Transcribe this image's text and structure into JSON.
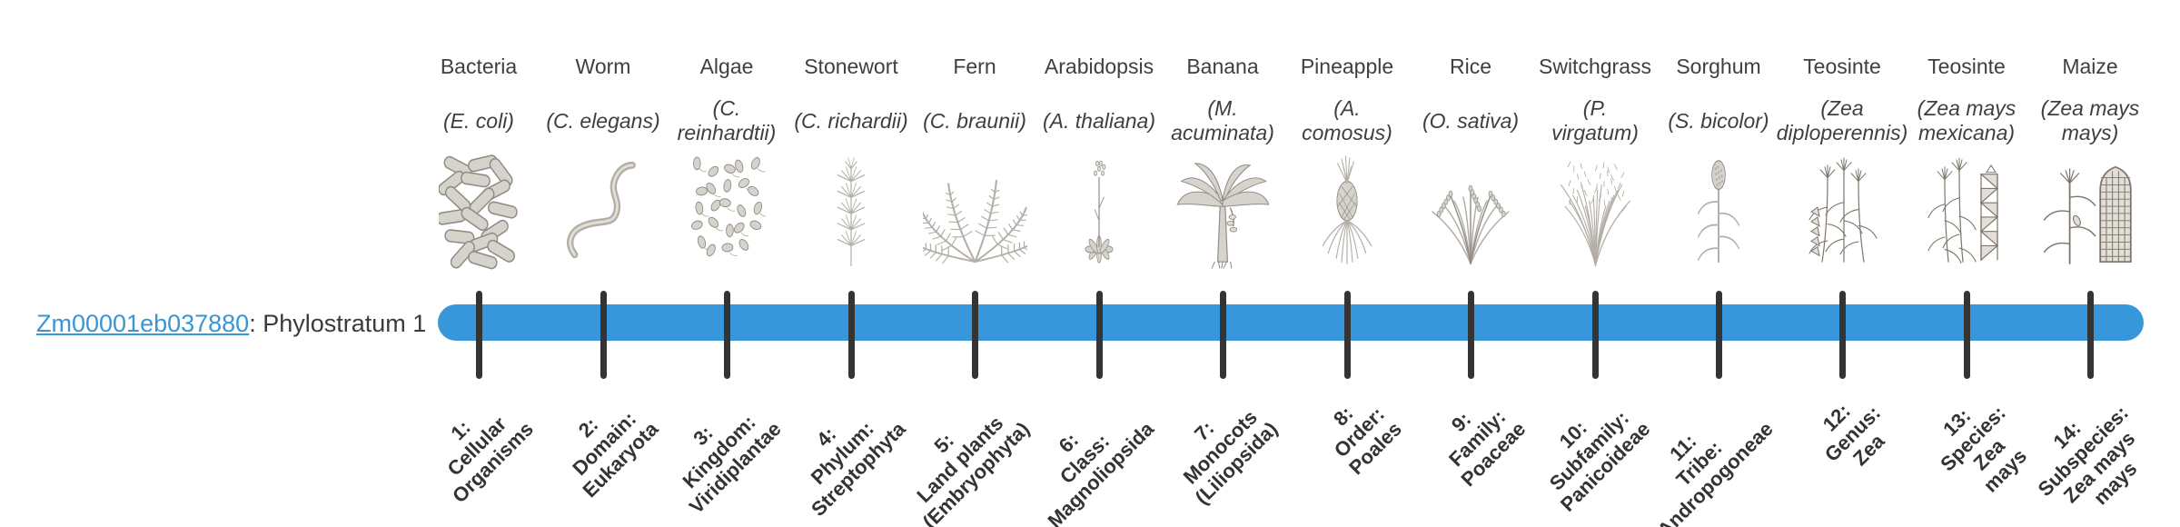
{
  "gene_row": {
    "gene_id": "Zm00001eb037880",
    "suffix": ": Phylostratum 1",
    "link_color": "#3a95d5",
    "phylostratum_value": 1
  },
  "timeline": {
    "bar_color": "#3897db",
    "tick_color": "#343434"
  },
  "illustration_palette": {
    "light": "#b3afa7",
    "mid": "#908c85",
    "dark": "#7c7569",
    "fill": "#d6d3cc",
    "paleFill": "#e2dfd8"
  },
  "columns": [
    {
      "organism": "Bacteria",
      "scientific_name_lines": [
        "(E. coli)"
      ],
      "illustration": "bacteria-illustration",
      "stratum_lines": [
        "1:",
        "Cellular",
        "Organisms"
      ]
    },
    {
      "organism": "Worm",
      "scientific_name_lines": [
        "(C. elegans)"
      ],
      "illustration": "worm-illustration",
      "stratum_lines": [
        "2:",
        "Domain:",
        "Eukaryota"
      ]
    },
    {
      "organism": "Algae",
      "scientific_name_lines": [
        "(C.",
        "reinhardtii)"
      ],
      "illustration": "algae-illustration",
      "stratum_lines": [
        "3:",
        "Kingdom:",
        "Viridiplantae"
      ]
    },
    {
      "organism": "Stonewort",
      "scientific_name_lines": [
        "(C. richardii)"
      ],
      "illustration": "stonewort-illustration",
      "stratum_lines": [
        "4:",
        "Phylum:",
        "Streptophyta"
      ]
    },
    {
      "organism": "Fern",
      "scientific_name_lines": [
        "(C. braunii)"
      ],
      "illustration": "fern-illustration",
      "stratum_lines": [
        "5:",
        "Land plants",
        "(Embryophyta)"
      ]
    },
    {
      "organism": "Arabidopsis",
      "scientific_name_lines": [
        "(A. thaliana)"
      ],
      "illustration": "arabidopsis-illustration",
      "stratum_lines": [
        "6:",
        "Class:",
        "Magnoliopsida"
      ]
    },
    {
      "organism": "Banana",
      "scientific_name_lines": [
        "(M.",
        "acuminata)"
      ],
      "illustration": "banana-illustration",
      "stratum_lines": [
        "7:",
        "Monocots",
        "(Liliopsida)"
      ]
    },
    {
      "organism": "Pineapple",
      "scientific_name_lines": [
        "(A.",
        "comosus)"
      ],
      "illustration": "pineapple-illustration",
      "stratum_lines": [
        "8:",
        "Order:",
        "Poales"
      ]
    },
    {
      "organism": "Rice",
      "scientific_name_lines": [
        "(O. sativa)"
      ],
      "illustration": "rice-illustration",
      "stratum_lines": [
        "9:",
        "Family:",
        "Poaceae"
      ]
    },
    {
      "organism": "Switchgrass",
      "scientific_name_lines": [
        "(P.",
        "virgatum)"
      ],
      "illustration": "switchgrass-illustration",
      "stratum_lines": [
        "10:",
        "Subfamily:",
        "Panicoideae"
      ]
    },
    {
      "organism": "Sorghum",
      "scientific_name_lines": [
        "(S. bicolor)"
      ],
      "illustration": "sorghum-illustration",
      "stratum_lines": [
        "11:",
        "Tribe:",
        "Andropogoneae"
      ]
    },
    {
      "organism": "Teosinte",
      "scientific_name_lines": [
        "(Zea",
        "diploperennis)"
      ],
      "illustration": "teosinte-diploperennis-illustration",
      "stratum_lines": [
        "12:",
        "Genus:",
        "Zea"
      ]
    },
    {
      "organism": "Teosinte",
      "scientific_name_lines": [
        "(Zea mays",
        "mexicana)"
      ],
      "illustration": "teosinte-mexicana-illustration",
      "stratum_lines": [
        "13:",
        "Species:",
        "Zea",
        "mays"
      ]
    },
    {
      "organism": "Maize",
      "scientific_name_lines": [
        "(Zea mays",
        "mays)"
      ],
      "illustration": "maize-illustration",
      "stratum_lines": [
        "14:",
        "Subspecies:",
        "Zea mays",
        "mays"
      ]
    }
  ]
}
